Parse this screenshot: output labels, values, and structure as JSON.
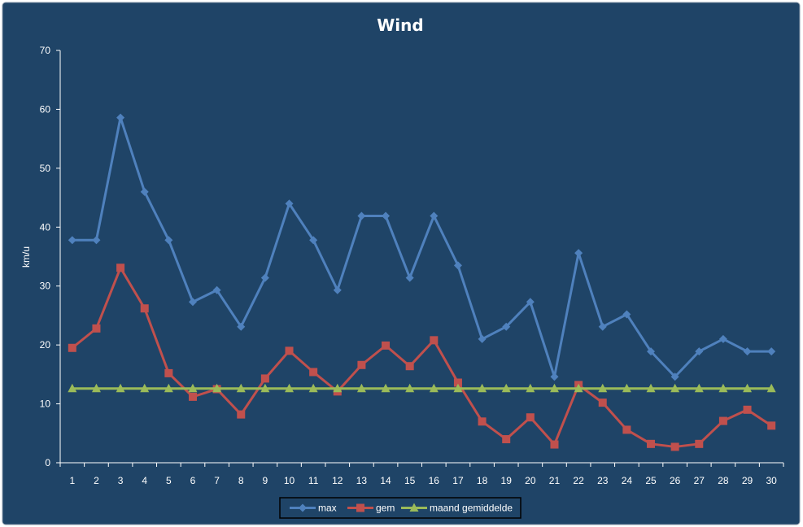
{
  "chart_data": {
    "type": "line",
    "title": "Wind",
    "xlabel": "",
    "ylabel": "km/u",
    "ylim": [
      0,
      70
    ],
    "yticks": [
      0,
      10,
      20,
      30,
      40,
      50,
      60,
      70
    ],
    "categories": [
      "1",
      "2",
      "3",
      "4",
      "5",
      "6",
      "7",
      "8",
      "9",
      "10",
      "11",
      "12",
      "13",
      "14",
      "15",
      "16",
      "17",
      "18",
      "19",
      "20",
      "21",
      "22",
      "23",
      "24",
      "25",
      "26",
      "27",
      "28",
      "29",
      "30"
    ],
    "grid": false,
    "legend_position": "bottom",
    "series": [
      {
        "name": "max",
        "color": "#4f81bd",
        "marker": "diamond",
        "values": [
          37.8,
          37.8,
          58.6,
          46.0,
          37.8,
          27.3,
          29.3,
          23.1,
          31.4,
          44.0,
          37.8,
          29.3,
          41.9,
          41.9,
          31.4,
          41.9,
          33.5,
          21.0,
          23.1,
          27.3,
          14.6,
          35.6,
          23.1,
          25.2,
          18.9,
          14.6,
          18.9,
          21.0,
          18.9,
          18.9
        ]
      },
      {
        "name": "gem",
        "color": "#c0504d",
        "marker": "square",
        "values": [
          19.5,
          22.8,
          33.1,
          26.2,
          15.2,
          11.2,
          12.5,
          8.2,
          14.3,
          19.0,
          15.4,
          12.1,
          16.6,
          19.9,
          16.4,
          20.8,
          13.6,
          7.0,
          4.0,
          7.7,
          3.1,
          13.2,
          10.2,
          5.6,
          3.2,
          2.7,
          3.2,
          7.1,
          9.0,
          6.3
        ]
      },
      {
        "name": "maand gemiddelde",
        "color": "#9bbb59",
        "marker": "triangle",
        "values": [
          12.6,
          12.6,
          12.6,
          12.6,
          12.6,
          12.6,
          12.6,
          12.6,
          12.6,
          12.6,
          12.6,
          12.6,
          12.6,
          12.6,
          12.6,
          12.6,
          12.6,
          12.6,
          12.6,
          12.6,
          12.6,
          12.6,
          12.6,
          12.6,
          12.6,
          12.6,
          12.6,
          12.6,
          12.6,
          12.6
        ]
      }
    ],
    "colors": {
      "background": "#1f4467",
      "axis": "#ffffff",
      "legend_border": "#000000",
      "legend_fill": "#1f4467"
    }
  }
}
